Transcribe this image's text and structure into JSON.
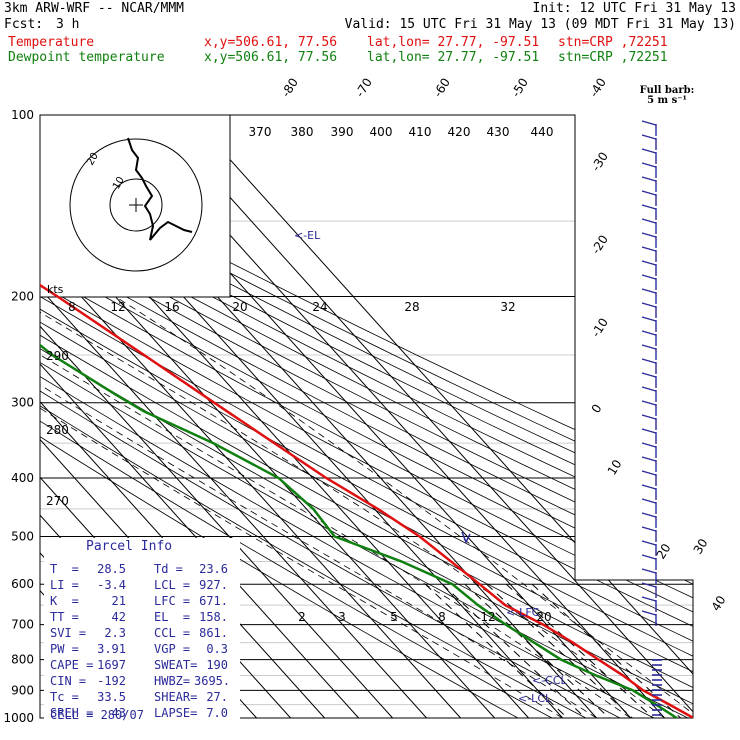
{
  "header": {
    "model": "3km ARW-WRF -- NCAR/MMM",
    "init": "Init: 12 UTC Fri 31 May 13",
    "fcst_label": "Fcst:",
    "fcst_value": "3 h",
    "valid": "Valid: 15 UTC Fri 31 May 13 (09 MDT Fri 31 May 13)",
    "temp_line": {
      "name": "Temperature",
      "xy": "x,y=506.61, 77.56",
      "latlon": "lat,lon= 27.77, -97.51",
      "stn": "stn=CRP ,72251"
    },
    "dew_line": {
      "name": "Dewpoint temperature",
      "xy": "x,y=506.61, 77.56",
      "latlon": "lat,lon= 27.77, -97.51",
      "stn": "stn=CRP ,72251"
    }
  },
  "colors": {
    "temperature": "#e01010",
    "dewpoint": "#108010",
    "barbs": "#2a2a9a",
    "annot": "#2a2a9a",
    "grid": "#000000"
  },
  "barb_legend": {
    "title": "Full barb:",
    "value": "5 m s⁻¹"
  },
  "chart_data": {
    "type": "line",
    "title": "",
    "ylabel": "",
    "pressure_levels": [
      100,
      200,
      300,
      400,
      500,
      600,
      700,
      800,
      900,
      1000
    ],
    "isotherm_labels": [
      "-80",
      "-70",
      "-60",
      "-50",
      "-40",
      "-30",
      "-20",
      "-10",
      "0",
      "10",
      "20",
      "30",
      "40"
    ],
    "theta_labels": [
      "370",
      "380",
      "390",
      "400",
      "410",
      "420",
      "430",
      "440"
    ],
    "theta_side_labels": [
      "290",
      "280",
      "270"
    ],
    "mixing_ratio_labels": [
      "2",
      "3",
      "5",
      "8",
      "12",
      "20"
    ],
    "series": [
      {
        "name": "Temperature",
        "points": [
          [
            100,
            -74
          ],
          [
            130,
            -62
          ],
          [
            150,
            -56
          ],
          [
            170,
            -55
          ],
          [
            200,
            -47
          ],
          [
            250,
            -37
          ],
          [
            300,
            -29
          ],
          [
            400,
            -16
          ],
          [
            450,
            -9
          ],
          [
            500,
            -4
          ],
          [
            600,
            1
          ],
          [
            650,
            3
          ],
          [
            700,
            9
          ],
          [
            750,
            13
          ],
          [
            800,
            16
          ],
          [
            850,
            19
          ],
          [
            900,
            21
          ],
          [
            950,
            25
          ],
          [
            1000,
            28.5
          ]
        ]
      },
      {
        "name": "Dewpoint temperature",
        "points": [
          [
            100,
            -87
          ],
          [
            150,
            -84
          ],
          [
            180,
            -75
          ],
          [
            200,
            -70
          ],
          [
            250,
            -64
          ],
          [
            290,
            -56
          ],
          [
            310,
            -52
          ],
          [
            350,
            -40
          ],
          [
            400,
            -30
          ],
          [
            450,
            -28
          ],
          [
            500,
            -29
          ],
          [
            550,
            -16
          ],
          [
            600,
            -7
          ],
          [
            650,
            -5
          ],
          [
            700,
            -2
          ],
          [
            800,
            5
          ],
          [
            850,
            11
          ],
          [
            900,
            18
          ],
          [
            950,
            21
          ],
          [
            1000,
            23.6
          ]
        ]
      }
    ],
    "hodograph": {
      "ring_labels": [
        "10",
        "20"
      ],
      "speed_label": "kts",
      "speed_ticks": [
        "8",
        "12",
        "16",
        "20",
        "24",
        "28",
        "32"
      ]
    },
    "annotations": [
      "<-EL",
      "<-LFC",
      "<-CCL",
      "<-LCL"
    ]
  },
  "parcel": {
    "title": "Parcel Info",
    "rows": [
      [
        "T  =",
        "28.5",
        "Td =",
        "23.6"
      ],
      [
        "LI =",
        "-3.4",
        "LCL =",
        "927."
      ],
      [
        "K  =",
        "21",
        "LFC =",
        "671."
      ],
      [
        "TT =",
        "42",
        "EL  =",
        "158."
      ],
      [
        "SVI =",
        "2.3",
        "CCL =",
        "861."
      ],
      [
        "PW =",
        "3.91",
        "VGP =",
        "0.3"
      ],
      [
        "CAPE =",
        "1697",
        "SWEAT=",
        "190"
      ],
      [
        "CIN =",
        "-192",
        "HWBZ=",
        "3695."
      ],
      [
        "Tc =",
        "33.5",
        "SHEAR=",
        "27."
      ],
      [
        "SREH =",
        "43",
        "LAPSE=",
        "7.0"
      ]
    ],
    "cell": "CELL = 280/07"
  }
}
